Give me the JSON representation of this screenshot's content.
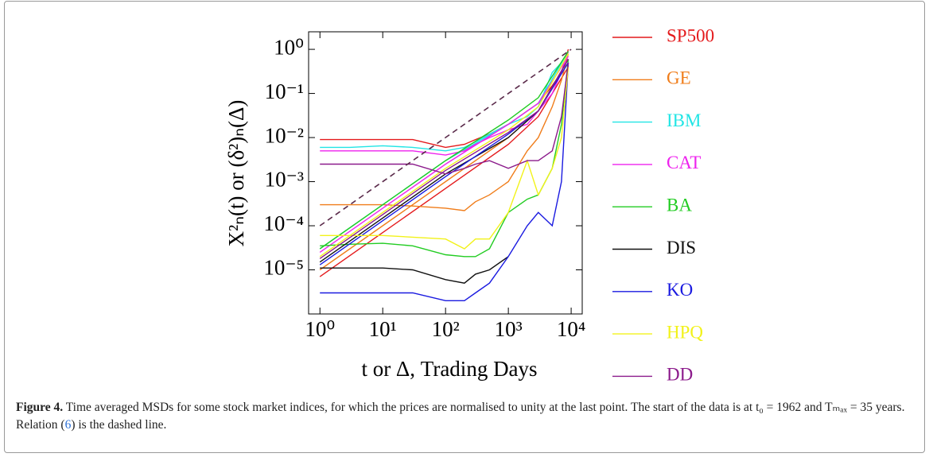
{
  "chart_data": {
    "type": "line",
    "x_label": "t or Δ, Trading Days",
    "y_label": "X²ₙ(t) or (δ²)ₙ(Δ)",
    "log_x": true,
    "log_y": true,
    "xlim": [
      0.66,
      15000
    ],
    "ylim": [
      1e-06,
      2.5
    ],
    "xticks": [
      {
        "value": 1,
        "label": "10⁰"
      },
      {
        "value": 10,
        "label": "10¹"
      },
      {
        "value": 100,
        "label": "10²"
      },
      {
        "value": 1000,
        "label": "10³"
      },
      {
        "value": 10000,
        "label": "10⁴"
      }
    ],
    "yticks": [
      {
        "value": 1,
        "label": "10⁰"
      },
      {
        "value": 0.1,
        "label": "10⁻¹"
      },
      {
        "value": 0.01,
        "label": "10⁻²"
      },
      {
        "value": 0.001,
        "label": "10⁻³"
      },
      {
        "value": 0.0001,
        "label": "10⁻⁴"
      },
      {
        "value": 1e-05,
        "label": "10⁻⁵"
      }
    ],
    "x": [
      1,
      3,
      10,
      30,
      100,
      200,
      300,
      500,
      1000,
      2000,
      3000,
      5000,
      7000,
      9000
    ],
    "tamsd_x": [
      1,
      10,
      100,
      1000,
      3000,
      9000
    ],
    "series": [
      {
        "name": "SP500",
        "color": "#e41a1c",
        "values": [
          0.009,
          0.009,
          0.009,
          0.009,
          0.006,
          0.007,
          0.009,
          0.012,
          0.02,
          0.04,
          0.06,
          0.15,
          0.3,
          1
        ],
        "tamsd_values": [
          7e-06,
          7e-05,
          0.0007,
          0.007,
          0.03,
          0.4
        ]
      },
      {
        "name": "GE",
        "color": "#f07d1a",
        "values": [
          0.0003,
          0.0003,
          0.0003,
          0.00028,
          0.00025,
          0.00022,
          0.00035,
          0.0005,
          0.001,
          0.005,
          0.01,
          0.05,
          0.2,
          0.8
        ],
        "tamsd_values": [
          1e-05,
          0.0001,
          0.001,
          0.01,
          0.04,
          0.5
        ]
      },
      {
        "name": "IBM",
        "color": "#22e5e5",
        "values": [
          0.006,
          0.006,
          0.0065,
          0.006,
          0.005,
          0.006,
          0.008,
          0.012,
          0.02,
          0.03,
          0.05,
          0.3,
          0.5,
          0.9
        ],
        "tamsd_values": [
          3e-05,
          0.0003,
          0.003,
          0.02,
          0.06,
          0.9
        ]
      },
      {
        "name": "CAT",
        "color": "#ee22ee",
        "values": [
          0.005,
          0.005,
          0.005,
          0.005,
          0.004,
          0.005,
          0.007,
          0.01,
          0.015,
          0.02,
          0.04,
          0.1,
          0.3,
          0.9
        ],
        "tamsd_values": [
          2.5e-05,
          0.00025,
          0.0025,
          0.02,
          0.06,
          0.7
        ]
      },
      {
        "name": "BA",
        "color": "#22cc22",
        "values": [
          3.5e-05,
          3.8e-05,
          4e-05,
          3.5e-05,
          2.2e-05,
          2e-05,
          2e-05,
          3e-05,
          0.0002,
          0.0004,
          0.0005,
          0.002,
          0.02,
          0.6
        ],
        "tamsd_values": [
          3e-05,
          0.0003,
          0.003,
          0.025,
          0.08,
          0.9
        ]
      },
      {
        "name": "DIS",
        "color": "#111111",
        "values": [
          1.1e-05,
          1.1e-05,
          1.1e-05,
          1e-05,
          6e-06,
          5e-06,
          8e-06,
          1e-05,
          2e-05,
          null,
          null,
          null,
          null,
          null
        ],
        "tamsd_values": [
          1.5e-05,
          0.00015,
          0.0015,
          0.01,
          0.04,
          0.6
        ]
      },
      {
        "name": "KO",
        "color": "#1a1ae0",
        "values": [
          3e-06,
          3e-06,
          3e-06,
          3e-06,
          2e-06,
          2e-06,
          3e-06,
          5e-06,
          2e-05,
          0.0001,
          0.0002,
          0.0001,
          0.001,
          0.5
        ],
        "tamsd_values": [
          1.3e-05,
          0.00013,
          0.0013,
          0.012,
          0.04,
          0.5
        ]
      },
      {
        "name": "HPQ",
        "color": "#f2f21a",
        "values": [
          6e-05,
          6e-05,
          6e-05,
          5.5e-05,
          5e-05,
          3e-05,
          5e-05,
          5e-05,
          0.0002,
          0.003,
          0.0005,
          0.002,
          0.01,
          0.4
        ],
        "tamsd_values": [
          2e-05,
          0.0002,
          0.002,
          0.015,
          0.05,
          0.8
        ]
      },
      {
        "name": "DD",
        "color": "#8b1a8b",
        "values": [
          0.0025,
          0.0025,
          0.0025,
          0.0025,
          0.0015,
          0.002,
          0.0025,
          0.003,
          0.002,
          0.003,
          0.003,
          0.005,
          0.03,
          0.5
        ],
        "tamsd_values": [
          1.8e-05,
          0.00018,
          0.0018,
          0.013,
          0.04,
          0.6
        ]
      }
    ],
    "reference_line": {
      "x": [
        1,
        10000
      ],
      "values": [
        0.0001,
        1
      ],
      "color": "#5a2a4a"
    }
  },
  "caption": {
    "label": "Figure 4.",
    "text_before": "Time averaged MSDs for some stock market indices, for which the prices are normalised to unity at the last point. The start of the data is at t₀ = 1962 and Tₘₐₓ = 35 years. Relation (",
    "ref": "6",
    "text_after": ") is the dashed line."
  }
}
